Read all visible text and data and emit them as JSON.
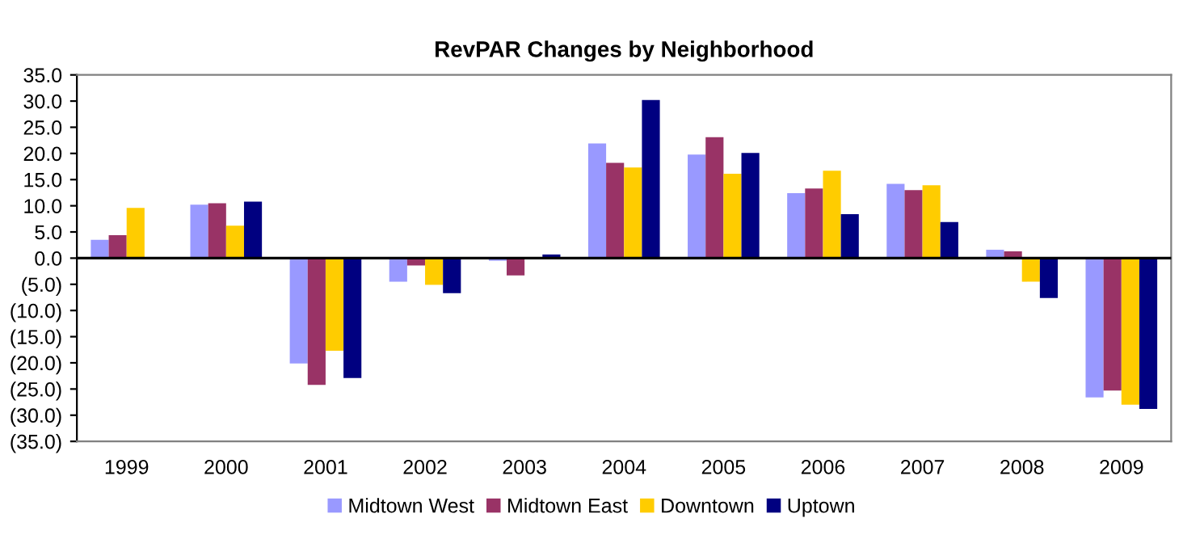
{
  "chart_data": {
    "type": "bar",
    "title": "RevPAR Changes by Neighborhood",
    "categories": [
      "1999",
      "2000",
      "2001",
      "2002",
      "2003",
      "2004",
      "2005",
      "2006",
      "2007",
      "2008",
      "2009"
    ],
    "series": [
      {
        "name": "Midtown West",
        "color": "#9999ff",
        "values": [
          3.5,
          10.2,
          -20.1,
          -4.5,
          -0.5,
          21.9,
          19.8,
          12.4,
          14.2,
          1.6,
          -26.6
        ]
      },
      {
        "name": "Midtown East",
        "color": "#993366",
        "values": [
          4.4,
          10.5,
          -24.2,
          -1.4,
          -3.3,
          18.2,
          23.1,
          13.3,
          13.0,
          1.3,
          -25.3
        ]
      },
      {
        "name": "Downtown",
        "color": "#ffcc00",
        "values": [
          9.6,
          6.2,
          -17.7,
          -5.1,
          null,
          17.3,
          16.1,
          16.7,
          13.9,
          -4.5,
          -28.0
        ]
      },
      {
        "name": "Uptown",
        "color": "#000080",
        "values": [
          null,
          10.8,
          -22.9,
          -6.7,
          0.7,
          30.2,
          20.1,
          8.4,
          6.9,
          -7.6,
          -28.8
        ]
      }
    ],
    "ylim": [
      -35,
      35
    ],
    "yticks": [
      {
        "value": -35,
        "label": "(35.0)"
      },
      {
        "value": -30,
        "label": "(30.0)"
      },
      {
        "value": -25,
        "label": "(25.0)"
      },
      {
        "value": -20,
        "label": "(20.0)"
      },
      {
        "value": -15,
        "label": "(15.0)"
      },
      {
        "value": -10,
        "label": "(10.0)"
      },
      {
        "value": -5,
        "label": "(5.0)"
      },
      {
        "value": 0,
        "label": "0.0"
      },
      {
        "value": 5,
        "label": "5.0"
      },
      {
        "value": 10,
        "label": "10.0"
      },
      {
        "value": 15,
        "label": "15.0"
      },
      {
        "value": 20,
        "label": "20.0"
      },
      {
        "value": 25,
        "label": "25.0"
      },
      {
        "value": 30,
        "label": "30.0"
      },
      {
        "value": 35,
        "label": "35.0"
      }
    ],
    "legend": "bottom"
  }
}
